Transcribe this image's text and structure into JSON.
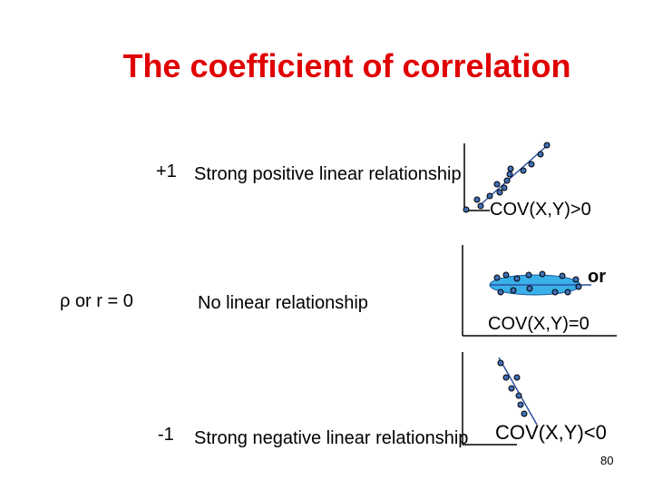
{
  "slide": {
    "title": "The coefficient of correlation",
    "page_number": "80"
  },
  "rows": {
    "positive": {
      "value": "+1",
      "description": "Strong positive linear relationship",
      "cov": "COV(X,Y)>0"
    },
    "zero": {
      "symbol": "ρ  or  r  =  0",
      "description": "No linear relationship",
      "or": "or",
      "cov": "COV(X,Y)=0"
    },
    "negative": {
      "value": "-1",
      "description": "Strong negative linear relationship",
      "cov": "COV(X,Y)<0"
    }
  },
  "colors": {
    "title": "#e00000",
    "point_fill": "#3f6fb5",
    "line": "#2c4fa0",
    "ellipse_fill": "#3ab0e8"
  }
}
